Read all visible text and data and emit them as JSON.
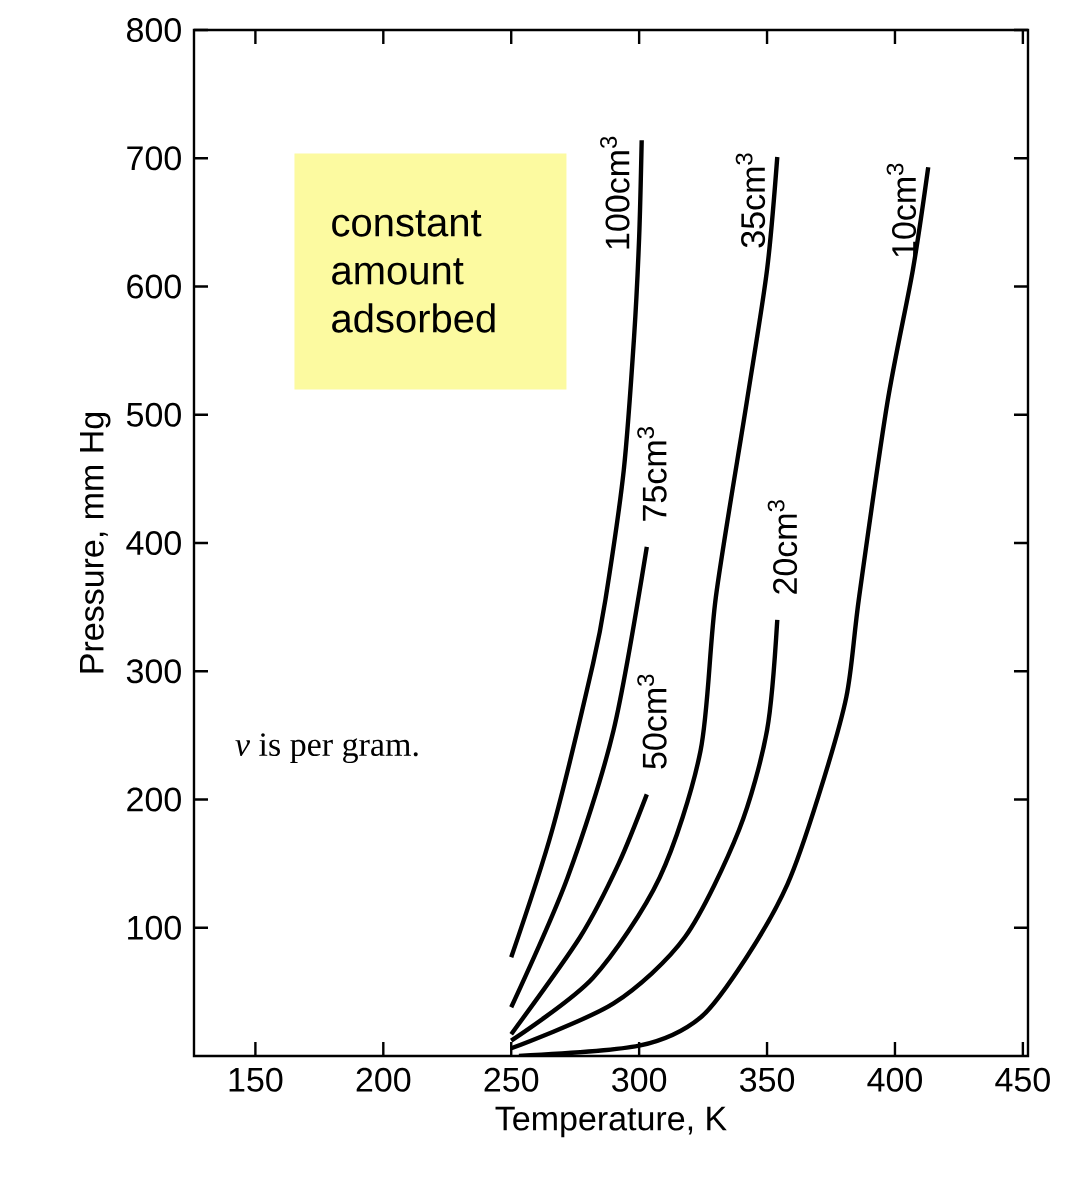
{
  "chart_data": {
    "type": "line",
    "xlabel": "Temperature, K",
    "ylabel": "Pressure, mm Hg",
    "xlim": [
      126,
      452
    ],
    "ylim": [
      0,
      800
    ],
    "xticks": [
      150,
      200,
      250,
      300,
      350,
      400,
      450
    ],
    "yticks": [
      100,
      200,
      300,
      400,
      500,
      600,
      700,
      800
    ],
    "grid": false,
    "legend": false,
    "marker": "none",
    "line_style": "solid",
    "annotations": [
      "constant amount adsorbed",
      "*v* is per gram."
    ],
    "series": [
      {
        "name": "100cm$^{3}$",
        "color": "#000000",
        "x": [
          250,
          266,
          282,
          287,
          294,
          298,
          300,
          301
        ],
        "values": [
          77,
          176,
          306,
          358,
          457,
          560,
          638,
          714
        ]
      },
      {
        "name": "75cm$^{3}$",
        "color": "#000000",
        "x": [
          250,
          272,
          290,
          303
        ],
        "values": [
          38,
          139,
          254,
          397
        ]
      },
      {
        "name": "50cm$^{3}$",
        "color": "#000000",
        "x": [
          250,
          277,
          292,
          303
        ],
        "values": [
          17,
          93,
          150,
          204
        ]
      },
      {
        "name": "35cm$^{3}$",
        "color": "#000000",
        "x": [
          250,
          282,
          308,
          324,
          330,
          342,
          350,
          354
        ],
        "values": [
          12,
          61,
          139,
          238,
          358,
          509,
          613,
          701
        ]
      },
      {
        "name": "20cm$^{3}$",
        "color": "#000000",
        "x": [
          250,
          290,
          318,
          339,
          350,
          354
        ],
        "values": [
          6,
          41,
          93,
          176,
          254,
          340
        ]
      },
      {
        "name": "10cm$^{3}$",
        "color": "#000000",
        "x": [
          253,
          300,
          324,
          342,
          358,
          370,
          381,
          386,
          397,
          407,
          413
        ],
        "values": [
          0,
          8,
          30,
          77,
          134,
          202,
          280,
          358,
          509,
          613,
          693
        ]
      }
    ]
  }
}
